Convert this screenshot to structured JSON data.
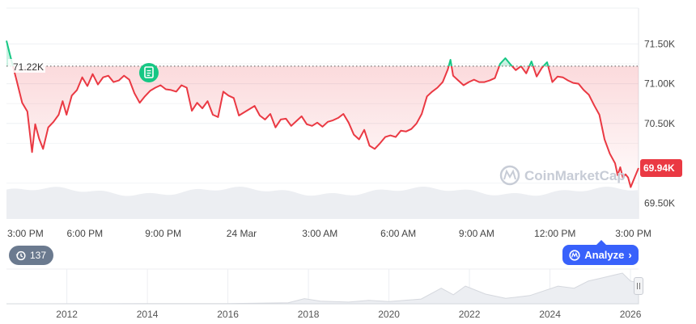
{
  "chart_data": {
    "type": "line",
    "title": "",
    "xlabel": "",
    "ylabel": "",
    "y_tick_labels": [
      "71.50K",
      "71.00K",
      "70.50K",
      "69.50K"
    ],
    "y_ticks": [
      71500,
      71000,
      70500,
      69500
    ],
    "ylim": [
      69300,
      71950
    ],
    "x_tick_labels": [
      "3:00 PM",
      "6:00 PM",
      "9:00 PM",
      "24 Mar",
      "3:00 AM",
      "6:00 AM",
      "9:00 AM",
      "12:00 PM",
      "3:00 PM"
    ],
    "x_ticks_hours": [
      0,
      3,
      6,
      9,
      12,
      15,
      18,
      21,
      24
    ],
    "x_range_hours": [
      0,
      24.2
    ],
    "reference_value": 71220,
    "reference_label": "71.22K",
    "current_value": 69940,
    "current_label": "69.94K",
    "series": [
      {
        "points": [
          [
            0.0,
            71540
          ],
          [
            0.12,
            71380
          ],
          [
            0.38,
            71050
          ],
          [
            0.6,
            70760
          ],
          [
            0.8,
            70650
          ],
          [
            0.98,
            70140
          ],
          [
            1.1,
            70490
          ],
          [
            1.25,
            70310
          ],
          [
            1.4,
            70180
          ],
          [
            1.6,
            70450
          ],
          [
            1.8,
            70520
          ],
          [
            2.0,
            70610
          ],
          [
            2.15,
            70780
          ],
          [
            2.3,
            70610
          ],
          [
            2.5,
            70850
          ],
          [
            2.7,
            70920
          ],
          [
            2.9,
            71080
          ],
          [
            3.1,
            70970
          ],
          [
            3.3,
            71120
          ],
          [
            3.5,
            70990
          ],
          [
            3.7,
            71080
          ],
          [
            3.9,
            71100
          ],
          [
            4.1,
            71020
          ],
          [
            4.3,
            71040
          ],
          [
            4.5,
            71100
          ],
          [
            4.7,
            71050
          ],
          [
            4.9,
            70880
          ],
          [
            5.1,
            70760
          ],
          [
            5.3,
            70840
          ],
          [
            5.5,
            70910
          ],
          [
            5.7,
            70950
          ],
          [
            5.9,
            70980
          ],
          [
            6.1,
            70930
          ],
          [
            6.3,
            70920
          ],
          [
            6.5,
            70900
          ],
          [
            6.7,
            70980
          ],
          [
            6.9,
            70950
          ],
          [
            7.1,
            70660
          ],
          [
            7.3,
            70760
          ],
          [
            7.5,
            70690
          ],
          [
            7.7,
            70780
          ],
          [
            7.9,
            70610
          ],
          [
            8.1,
            70580
          ],
          [
            8.3,
            70900
          ],
          [
            8.5,
            70850
          ],
          [
            8.7,
            70820
          ],
          [
            8.9,
            70600
          ],
          [
            9.1,
            70640
          ],
          [
            9.3,
            70680
          ],
          [
            9.5,
            70720
          ],
          [
            9.7,
            70600
          ],
          [
            9.9,
            70550
          ],
          [
            10.1,
            70620
          ],
          [
            10.3,
            70450
          ],
          [
            10.5,
            70550
          ],
          [
            10.7,
            70560
          ],
          [
            10.9,
            70470
          ],
          [
            11.1,
            70530
          ],
          [
            11.3,
            70590
          ],
          [
            11.5,
            70490
          ],
          [
            11.7,
            70470
          ],
          [
            11.9,
            70510
          ],
          [
            12.1,
            70460
          ],
          [
            12.3,
            70520
          ],
          [
            12.5,
            70540
          ],
          [
            12.7,
            70570
          ],
          [
            12.9,
            70620
          ],
          [
            13.1,
            70510
          ],
          [
            13.3,
            70360
          ],
          [
            13.5,
            70300
          ],
          [
            13.7,
            70420
          ],
          [
            13.9,
            70220
          ],
          [
            14.1,
            70180
          ],
          [
            14.3,
            70250
          ],
          [
            14.5,
            70330
          ],
          [
            14.7,
            70350
          ],
          [
            14.9,
            70330
          ],
          [
            15.1,
            70410
          ],
          [
            15.3,
            70400
          ],
          [
            15.5,
            70430
          ],
          [
            15.7,
            70500
          ],
          [
            15.9,
            70620
          ],
          [
            16.1,
            70840
          ],
          [
            16.3,
            70900
          ],
          [
            16.5,
            70950
          ],
          [
            16.7,
            71020
          ],
          [
            16.9,
            71180
          ],
          [
            17.0,
            71300
          ],
          [
            17.1,
            71100
          ],
          [
            17.3,
            71040
          ],
          [
            17.5,
            70980
          ],
          [
            17.7,
            71020
          ],
          [
            17.9,
            71050
          ],
          [
            18.1,
            71020
          ],
          [
            18.3,
            71020
          ],
          [
            18.5,
            71040
          ],
          [
            18.7,
            71070
          ],
          [
            18.9,
            71250
          ],
          [
            19.1,
            71320
          ],
          [
            19.3,
            71240
          ],
          [
            19.5,
            71170
          ],
          [
            19.7,
            71220
          ],
          [
            19.9,
            71130
          ],
          [
            20.1,
            71280
          ],
          [
            20.3,
            71090
          ],
          [
            20.5,
            71200
          ],
          [
            20.7,
            71270
          ],
          [
            20.9,
            71020
          ],
          [
            21.1,
            71090
          ],
          [
            21.3,
            71080
          ],
          [
            21.5,
            71040
          ],
          [
            21.7,
            71010
          ],
          [
            21.9,
            71000
          ],
          [
            22.1,
            70920
          ],
          [
            22.3,
            70860
          ],
          [
            22.5,
            70730
          ],
          [
            22.7,
            70610
          ],
          [
            22.9,
            70300
          ],
          [
            23.1,
            70120
          ],
          [
            23.3,
            70000
          ],
          [
            23.4,
            69850
          ],
          [
            23.5,
            69950
          ],
          [
            23.6,
            69820
          ],
          [
            23.7,
            69860
          ],
          [
            23.8,
            69820
          ],
          [
            23.9,
            69700
          ],
          [
            24.0,
            69780
          ],
          [
            24.2,
            69940
          ]
        ]
      }
    ],
    "volume_style": "area",
    "nav_x_tick_labels": [
      "2012",
      "2014",
      "2016",
      "2018",
      "2020",
      "2022",
      "2024",
      "2026"
    ],
    "nav_x_ticks": [
      2012,
      2014,
      2016,
      2018,
      2020,
      2022,
      2024,
      2026
    ],
    "nav_range": [
      2010.5,
      2026.2
    ],
    "watermark": "CoinMarketCap",
    "colors": {
      "line_down": "#ea3943",
      "line_up": "#16c784",
      "fill_down": "#ea3943",
      "nav_fill": "#eceef2",
      "nav_line": "#d5d8de",
      "accent": "#3861fb",
      "badge_grey": "#6b7a8f"
    },
    "grid": true,
    "legend": "none"
  },
  "history_badge": {
    "count": "137",
    "icon": "history-icon"
  },
  "analyze_button": {
    "label": "Analyze",
    "icon": "coinmarketcap-logo-icon",
    "chevron": "chevron-right-icon"
  },
  "annotation_icon": "document-icon"
}
